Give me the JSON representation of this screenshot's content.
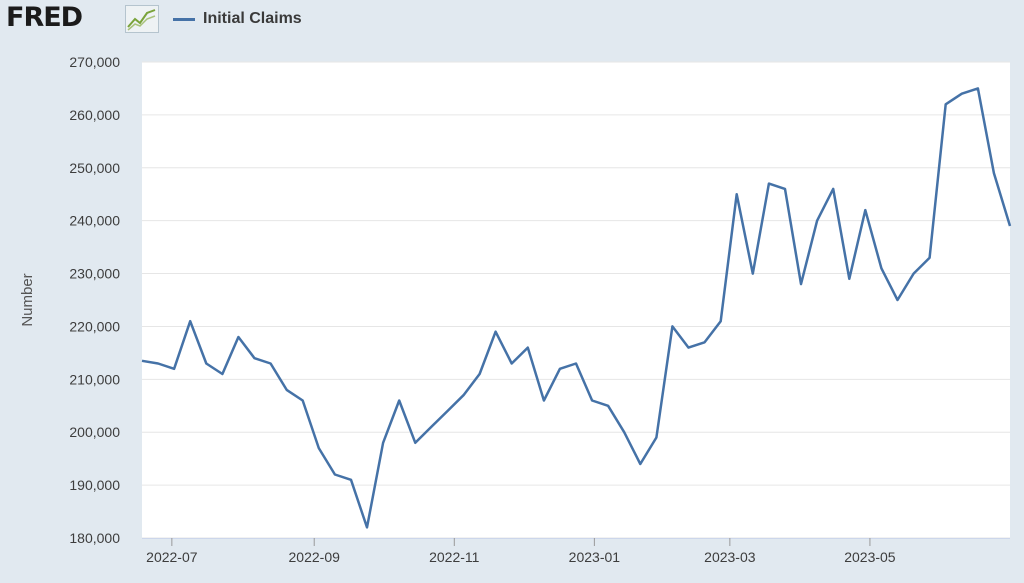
{
  "header": {
    "logo_text": "FRED",
    "legend_label": "Initial Claims"
  },
  "colors": {
    "page_background": "#e1e9f0",
    "plot_background": "#ffffff",
    "series_line": "#4572a7",
    "gridline": "#e6e6e6"
  },
  "icons": {
    "logo_mark": "line-chart-icon"
  },
  "chart_data": {
    "type": "line",
    "title": "",
    "xlabel": "",
    "ylabel": "Number",
    "ylim": [
      180000,
      270000
    ],
    "xlim": [
      "2022-06-18",
      "2023-07-01"
    ],
    "y_ticks": [
      180000,
      190000,
      200000,
      210000,
      220000,
      230000,
      240000,
      250000,
      260000,
      270000
    ],
    "y_tick_labels": [
      "180,000",
      "190,000",
      "200,000",
      "210,000",
      "220,000",
      "230,000",
      "240,000",
      "250,000",
      "260,000",
      "270,000"
    ],
    "x_ticks": [
      "2022-07-01",
      "2022-09-01",
      "2022-11-01",
      "2023-01-01",
      "2023-03-01",
      "2023-05-01"
    ],
    "x_tick_labels": [
      "2022-07",
      "2022-09",
      "2022-11",
      "2023-01",
      "2023-03",
      "2023-05"
    ],
    "grid": "horizontal",
    "legend": "top-left",
    "series": [
      {
        "name": "Initial Claims",
        "x": [
          "2022-06-18",
          "2022-06-25",
          "2022-07-02",
          "2022-07-09",
          "2022-07-16",
          "2022-07-23",
          "2022-07-30",
          "2022-08-06",
          "2022-08-13",
          "2022-08-20",
          "2022-08-27",
          "2022-09-03",
          "2022-09-10",
          "2022-09-17",
          "2022-09-24",
          "2022-10-01",
          "2022-10-08",
          "2022-10-15",
          "2022-10-22",
          "2022-10-29",
          "2022-11-05",
          "2022-11-12",
          "2022-11-19",
          "2022-11-26",
          "2022-12-03",
          "2022-12-10",
          "2022-12-17",
          "2022-12-24",
          "2022-12-31",
          "2023-01-07",
          "2023-01-14",
          "2023-01-21",
          "2023-01-28",
          "2023-02-04",
          "2023-02-11",
          "2023-02-18",
          "2023-02-25",
          "2023-03-04",
          "2023-03-11",
          "2023-03-18",
          "2023-03-25",
          "2023-04-01",
          "2023-04-08",
          "2023-04-15",
          "2023-04-22",
          "2023-04-29",
          "2023-05-06",
          "2023-05-13",
          "2023-05-20",
          "2023-05-27",
          "2023-06-03",
          "2023-06-10",
          "2023-06-17",
          "2023-06-24",
          "2023-07-01"
        ],
        "values": [
          213500,
          213000,
          212000,
          221000,
          213000,
          211000,
          218000,
          214000,
          213000,
          208000,
          206000,
          197000,
          192000,
          191000,
          182000,
          198000,
          206000,
          198000,
          201000,
          204000,
          207000,
          211000,
          219000,
          213000,
          216000,
          206000,
          212000,
          213000,
          206000,
          205000,
          200000,
          194000,
          199000,
          220000,
          216000,
          217000,
          221000,
          245000,
          230000,
          247000,
          246000,
          228000,
          240000,
          246000,
          229000,
          242000,
          231000,
          225000,
          230000,
          233000,
          262000,
          264000,
          265000,
          249000,
          239000
        ]
      }
    ]
  }
}
